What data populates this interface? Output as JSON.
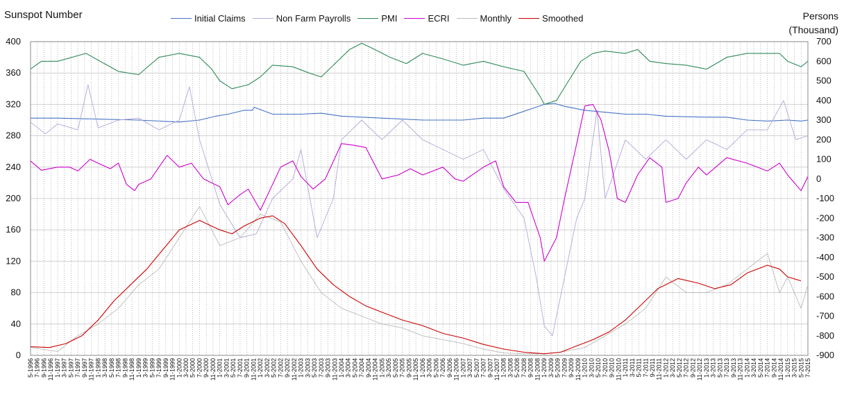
{
  "chart_data": {
    "type": "line",
    "title_left": "Sunspot Number",
    "title_right": [
      "Persons",
      "(Thousand)"
    ],
    "y_left": {
      "min": 0,
      "max": 400,
      "ticks": [
        0,
        40,
        80,
        120,
        160,
        200,
        240,
        280,
        320,
        360,
        400
      ]
    },
    "y_right": {
      "min": -900,
      "max": 700,
      "ticks": [
        -900,
        -800,
        -700,
        -600,
        -500,
        -400,
        -300,
        -200,
        -100,
        0,
        100,
        200,
        300,
        400,
        500,
        600,
        700
      ]
    },
    "x_start": "5-1996",
    "x_end": "7-2015",
    "x_tick_step_months": 2,
    "grid": true,
    "legend_position": "top",
    "series": [
      {
        "name": "Initial Claims",
        "color": "#4472C4",
        "axis": "right",
        "points": [
          [
            1996.33,
            310
          ],
          [
            1997.0,
            310
          ],
          [
            1998.0,
            305
          ],
          [
            1999.0,
            300
          ],
          [
            2000.0,
            290
          ],
          [
            2000.5,
            300
          ],
          [
            2000.9,
            320
          ],
          [
            2001.2,
            330
          ],
          [
            2001.6,
            350
          ],
          [
            2001.8,
            350
          ],
          [
            2001.85,
            365
          ],
          [
            2002.3,
            330
          ],
          [
            2003.0,
            330
          ],
          [
            2003.5,
            335
          ],
          [
            2004.0,
            320
          ],
          [
            2004.5,
            315
          ],
          [
            2005.0,
            310
          ],
          [
            2005.5,
            305
          ],
          [
            2006.0,
            300
          ],
          [
            2007.0,
            300
          ],
          [
            2007.5,
            310
          ],
          [
            2008.0,
            310
          ],
          [
            2008.5,
            345
          ],
          [
            2009.0,
            380
          ],
          [
            2009.25,
            385
          ],
          [
            2009.5,
            370
          ],
          [
            2010.0,
            350
          ],
          [
            2010.5,
            340
          ],
          [
            2011.0,
            330
          ],
          [
            2011.5,
            330
          ],
          [
            2012.0,
            320
          ],
          [
            2013.0,
            315
          ],
          [
            2013.5,
            315
          ],
          [
            2014.0,
            300
          ],
          [
            2014.5,
            295
          ],
          [
            2015.0,
            300
          ],
          [
            2015.33,
            295
          ],
          [
            2015.5,
            300
          ]
        ]
      },
      {
        "name": "Non Farm Payrolls",
        "color": "#B4A7D6",
        "axis": "right",
        "points": [
          [
            1996.33,
            290
          ],
          [
            1996.7,
            230
          ],
          [
            1997.0,
            280
          ],
          [
            1997.5,
            250
          ],
          [
            1997.75,
            480
          ],
          [
            1998.0,
            260
          ],
          [
            1998.5,
            300
          ],
          [
            1999.0,
            310
          ],
          [
            1999.5,
            250
          ],
          [
            2000.0,
            300
          ],
          [
            2000.25,
            470
          ],
          [
            2000.5,
            200
          ],
          [
            2001.0,
            -130
          ],
          [
            2001.5,
            -300
          ],
          [
            2001.9,
            -280
          ],
          [
            2002.3,
            -100
          ],
          [
            2002.8,
            0
          ],
          [
            2003.0,
            150
          ],
          [
            2003.4,
            -300
          ],
          [
            2003.8,
            -100
          ],
          [
            2004.0,
            200
          ],
          [
            2004.5,
            300
          ],
          [
            2005.0,
            200
          ],
          [
            2005.5,
            300
          ],
          [
            2006.0,
            200
          ],
          [
            2006.5,
            150
          ],
          [
            2007.0,
            100
          ],
          [
            2007.5,
            150
          ],
          [
            2008.0,
            -50
          ],
          [
            2008.5,
            -200
          ],
          [
            2008.8,
            -500
          ],
          [
            2009.0,
            -750
          ],
          [
            2009.2,
            -800
          ],
          [
            2009.5,
            -500
          ],
          [
            2009.8,
            -200
          ],
          [
            2010.0,
            -100
          ],
          [
            2010.3,
            350
          ],
          [
            2010.5,
            -100
          ],
          [
            2011.0,
            200
          ],
          [
            2011.5,
            100
          ],
          [
            2012.0,
            200
          ],
          [
            2012.5,
            100
          ],
          [
            2013.0,
            200
          ],
          [
            2013.5,
            150
          ],
          [
            2014.0,
            250
          ],
          [
            2014.5,
            250
          ],
          [
            2014.9,
            400
          ],
          [
            2015.2,
            200
          ],
          [
            2015.5,
            220
          ]
        ]
      },
      {
        "name": "PMI",
        "color": "#2E8B57",
        "axis": "left",
        "points": [
          [
            1996.33,
            365
          ],
          [
            1996.6,
            375
          ],
          [
            1997.0,
            375
          ],
          [
            1997.7,
            385
          ],
          [
            1998.5,
            362
          ],
          [
            1999.0,
            358
          ],
          [
            1999.5,
            380
          ],
          [
            2000.0,
            385
          ],
          [
            2000.5,
            380
          ],
          [
            2000.8,
            365
          ],
          [
            2001.0,
            350
          ],
          [
            2001.3,
            340
          ],
          [
            2001.7,
            345
          ],
          [
            2002.0,
            355
          ],
          [
            2002.3,
            370
          ],
          [
            2002.8,
            368
          ],
          [
            2003.2,
            360
          ],
          [
            2003.5,
            355
          ],
          [
            2003.8,
            370
          ],
          [
            2004.2,
            390
          ],
          [
            2004.5,
            398
          ],
          [
            2004.9,
            388
          ],
          [
            2005.2,
            380
          ],
          [
            2005.6,
            372
          ],
          [
            2006.0,
            385
          ],
          [
            2006.5,
            378
          ],
          [
            2007.0,
            370
          ],
          [
            2007.5,
            375
          ],
          [
            2008.0,
            368
          ],
          [
            2008.5,
            362
          ],
          [
            2008.9,
            330
          ],
          [
            2009.0,
            320
          ],
          [
            2009.3,
            325
          ],
          [
            2009.6,
            350
          ],
          [
            2009.9,
            375
          ],
          [
            2010.2,
            385
          ],
          [
            2010.5,
            388
          ],
          [
            2011.0,
            385
          ],
          [
            2011.3,
            390
          ],
          [
            2011.6,
            375
          ],
          [
            2012.0,
            372
          ],
          [
            2012.5,
            370
          ],
          [
            2013.0,
            365
          ],
          [
            2013.5,
            380
          ],
          [
            2014.0,
            385
          ],
          [
            2014.5,
            385
          ],
          [
            2014.8,
            385
          ],
          [
            2015.0,
            375
          ],
          [
            2015.33,
            368
          ],
          [
            2015.5,
            375
          ]
        ]
      },
      {
        "name": "ECRI",
        "color": "#CC00CC",
        "axis": "left",
        "points": [
          [
            1996.33,
            248
          ],
          [
            1996.6,
            236
          ],
          [
            1997.0,
            240
          ],
          [
            1997.3,
            240
          ],
          [
            1997.5,
            235
          ],
          [
            1997.8,
            250
          ],
          [
            1998.0,
            245
          ],
          [
            1998.3,
            238
          ],
          [
            1998.5,
            245
          ],
          [
            1998.7,
            218
          ],
          [
            1998.9,
            210
          ],
          [
            1999.0,
            218
          ],
          [
            1999.3,
            225
          ],
          [
            1999.5,
            240
          ],
          [
            1999.7,
            255
          ],
          [
            2000.0,
            240
          ],
          [
            2000.3,
            245
          ],
          [
            2000.6,
            225
          ],
          [
            2001.0,
            215
          ],
          [
            2001.2,
            192
          ],
          [
            2001.5,
            205
          ],
          [
            2001.7,
            212
          ],
          [
            2002.0,
            185
          ],
          [
            2002.3,
            218
          ],
          [
            2002.5,
            240
          ],
          [
            2002.8,
            248
          ],
          [
            2003.0,
            228
          ],
          [
            2003.3,
            212
          ],
          [
            2003.6,
            225
          ],
          [
            2004.0,
            270
          ],
          [
            2004.3,
            268
          ],
          [
            2004.6,
            265
          ],
          [
            2005.0,
            225
          ],
          [
            2005.4,
            230
          ],
          [
            2005.7,
            238
          ],
          [
            2006.0,
            230
          ],
          [
            2006.5,
            240
          ],
          [
            2006.8,
            225
          ],
          [
            2007.0,
            222
          ],
          [
            2007.5,
            240
          ],
          [
            2007.8,
            248
          ],
          [
            2008.0,
            215
          ],
          [
            2008.3,
            195
          ],
          [
            2008.6,
            195
          ],
          [
            2008.9,
            150
          ],
          [
            2009.0,
            120
          ],
          [
            2009.3,
            150
          ],
          [
            2009.5,
            200
          ],
          [
            2009.8,
            270
          ],
          [
            2010.0,
            318
          ],
          [
            2010.2,
            320
          ],
          [
            2010.4,
            300
          ],
          [
            2010.6,
            260
          ],
          [
            2010.8,
            200
          ],
          [
            2011.0,
            195
          ],
          [
            2011.3,
            230
          ],
          [
            2011.6,
            252
          ],
          [
            2011.9,
            240
          ],
          [
            2012.0,
            195
          ],
          [
            2012.3,
            200
          ],
          [
            2012.5,
            220
          ],
          [
            2012.8,
            240
          ],
          [
            2013.0,
            230
          ],
          [
            2013.5,
            252
          ],
          [
            2014.0,
            245
          ],
          [
            2014.5,
            235
          ],
          [
            2014.8,
            245
          ],
          [
            2015.0,
            230
          ],
          [
            2015.33,
            210
          ],
          [
            2015.5,
            228
          ]
        ]
      },
      {
        "name": "Monthly",
        "color": "#BBBBBB",
        "axis": "left",
        "points": [
          [
            1996.33,
            10
          ],
          [
            1997.0,
            5
          ],
          [
            1997.5,
            25
          ],
          [
            1998.0,
            40
          ],
          [
            1998.5,
            60
          ],
          [
            1999.0,
            90
          ],
          [
            1999.5,
            110
          ],
          [
            2000.0,
            150
          ],
          [
            2000.5,
            190
          ],
          [
            2001.0,
            140
          ],
          [
            2001.5,
            150
          ],
          [
            2002.0,
            180
          ],
          [
            2002.5,
            170
          ],
          [
            2003.0,
            120
          ],
          [
            2003.5,
            80
          ],
          [
            2004.0,
            60
          ],
          [
            2004.5,
            50
          ],
          [
            2005.0,
            40
          ],
          [
            2005.5,
            35
          ],
          [
            2006.0,
            25
          ],
          [
            2006.5,
            20
          ],
          [
            2007.0,
            15
          ],
          [
            2007.5,
            8
          ],
          [
            2008.0,
            3
          ],
          [
            2008.5,
            2
          ],
          [
            2009.0,
            2
          ],
          [
            2009.5,
            5
          ],
          [
            2010.0,
            10
          ],
          [
            2010.5,
            25
          ],
          [
            2011.0,
            40
          ],
          [
            2011.5,
            60
          ],
          [
            2012.0,
            100
          ],
          [
            2012.5,
            80
          ],
          [
            2013.0,
            80
          ],
          [
            2013.5,
            90
          ],
          [
            2014.0,
            110
          ],
          [
            2014.5,
            130
          ],
          [
            2014.8,
            80
          ],
          [
            2015.0,
            100
          ],
          [
            2015.33,
            60
          ],
          [
            2015.5,
            90
          ]
        ]
      },
      {
        "name": "Smoothed",
        "color": "#CC0000",
        "axis": "left",
        "points": [
          [
            1996.33,
            11
          ],
          [
            1996.8,
            10
          ],
          [
            1997.2,
            15
          ],
          [
            1997.6,
            25
          ],
          [
            1998.0,
            45
          ],
          [
            1998.4,
            70
          ],
          [
            1998.8,
            90
          ],
          [
            1999.2,
            110
          ],
          [
            1999.6,
            135
          ],
          [
            2000.0,
            160
          ],
          [
            2000.5,
            172
          ],
          [
            2001.0,
            160
          ],
          [
            2001.3,
            155
          ],
          [
            2001.6,
            165
          ],
          [
            2002.0,
            175
          ],
          [
            2002.3,
            178
          ],
          [
            2002.6,
            168
          ],
          [
            2003.0,
            140
          ],
          [
            2003.4,
            110
          ],
          [
            2003.8,
            90
          ],
          [
            2004.2,
            75
          ],
          [
            2004.6,
            63
          ],
          [
            2005.0,
            55
          ],
          [
            2005.5,
            45
          ],
          [
            2006.0,
            38
          ],
          [
            2006.5,
            28
          ],
          [
            2007.0,
            22
          ],
          [
            2007.5,
            14
          ],
          [
            2008.0,
            8
          ],
          [
            2008.5,
            4
          ],
          [
            2009.0,
            2
          ],
          [
            2009.4,
            4
          ],
          [
            2009.8,
            12
          ],
          [
            2010.2,
            20
          ],
          [
            2010.6,
            30
          ],
          [
            2011.0,
            45
          ],
          [
            2011.4,
            65
          ],
          [
            2011.8,
            85
          ],
          [
            2012.3,
            98
          ],
          [
            2012.8,
            92
          ],
          [
            2013.2,
            85
          ],
          [
            2013.6,
            90
          ],
          [
            2014.0,
            105
          ],
          [
            2014.5,
            115
          ],
          [
            2014.8,
            110
          ],
          [
            2015.0,
            100
          ],
          [
            2015.33,
            95
          ]
        ]
      }
    ]
  }
}
